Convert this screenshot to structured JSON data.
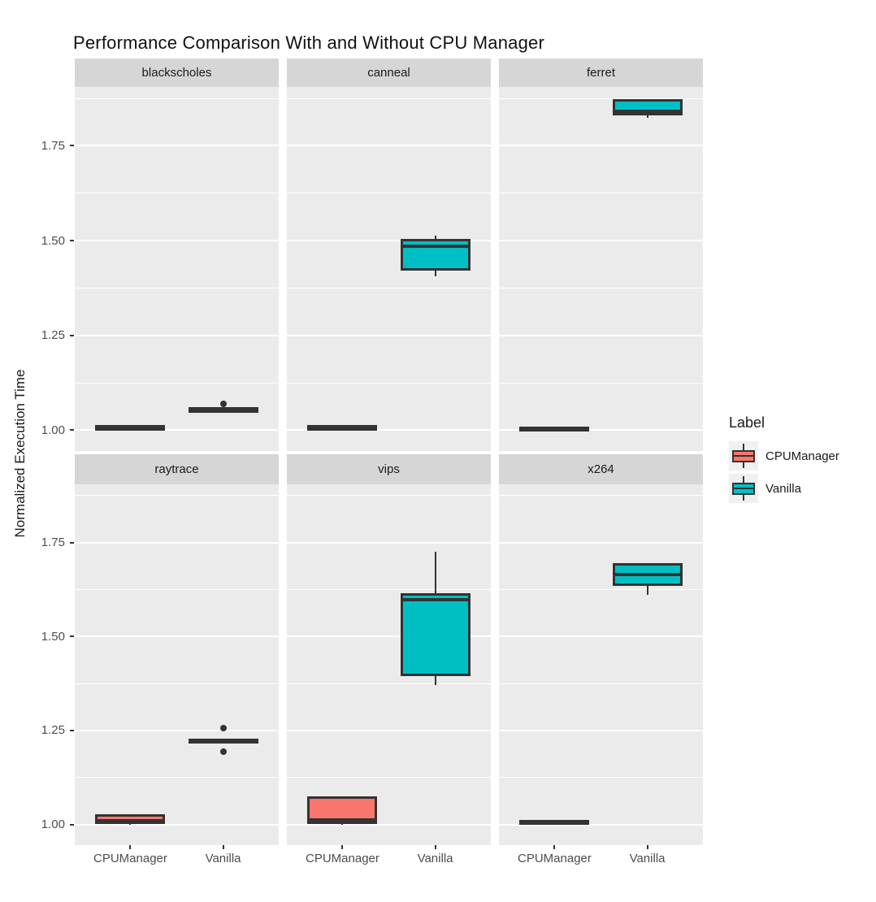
{
  "chart_data": {
    "type": "boxplot",
    "title": "Performance Comparison With and Without CPU Manager",
    "xlabel": "",
    "ylabel": "Normalized Execution Time",
    "categories": [
      "CPUManager",
      "Vanilla"
    ],
    "y_ticks": [
      1.0,
      1.25,
      1.5,
      1.75
    ],
    "y_tick_labels": [
      "1.00",
      "1.25",
      "1.50",
      "1.75"
    ],
    "y_minor": [
      1.125,
      1.375,
      1.625,
      1.875
    ],
    "ylim": [
      0.945,
      1.905
    ],
    "grid": true,
    "legend": {
      "title": "Label",
      "position": "right",
      "entries": [
        {
          "label": "CPUManager",
          "color": "#F8766D"
        },
        {
          "label": "Vanilla",
          "color": "#00BFC4"
        }
      ]
    },
    "facets": [
      {
        "label": "blackscholes",
        "boxes": [
          {
            "group": "CPUManager",
            "min": 1.002,
            "q1": 1.003,
            "median": 1.006,
            "q3": 1.009,
            "max": 1.01,
            "outliers": []
          },
          {
            "group": "Vanilla",
            "min": 1.048,
            "q1": 1.05,
            "median": 1.053,
            "q3": 1.056,
            "max": 1.058,
            "outliers": [
              1.07
            ]
          }
        ]
      },
      {
        "label": "canneal",
        "boxes": [
          {
            "group": "CPUManager",
            "min": 1.0,
            "q1": 1.002,
            "median": 1.006,
            "q3": 1.01,
            "max": 1.012,
            "outliers": []
          },
          {
            "group": "Vanilla",
            "min": 1.405,
            "q1": 1.425,
            "median": 1.485,
            "q3": 1.5,
            "max": 1.512,
            "outliers": []
          }
        ]
      },
      {
        "label": "ferret",
        "boxes": [
          {
            "group": "CPUManager",
            "min": 0.998,
            "q1": 1.0,
            "median": 1.002,
            "q3": 1.005,
            "max": 1.006,
            "outliers": []
          },
          {
            "group": "Vanilla",
            "min": 1.824,
            "q1": 1.834,
            "median": 1.84,
            "q3": 1.868,
            "max": 1.871,
            "outliers": []
          }
        ]
      },
      {
        "label": "raytrace",
        "boxes": [
          {
            "group": "CPUManager",
            "min": 1.0,
            "q1": 1.005,
            "median": 1.01,
            "q3": 1.022,
            "max": 1.026,
            "outliers": []
          },
          {
            "group": "Vanilla",
            "min": 1.218,
            "q1": 1.219,
            "median": 1.221,
            "q3": 1.224,
            "max": 1.226,
            "outliers": [
              1.256,
              1.194
            ]
          }
        ]
      },
      {
        "label": "vips",
        "boxes": [
          {
            "group": "CPUManager",
            "min": 1.0,
            "q1": 1.005,
            "median": 1.012,
            "q3": 1.07,
            "max": 1.073,
            "outliers": []
          },
          {
            "group": "Vanilla",
            "min": 1.372,
            "q1": 1.398,
            "median": 1.598,
            "q3": 1.61,
            "max": 1.725,
            "outliers": []
          }
        ]
      },
      {
        "label": "x264",
        "boxes": [
          {
            "group": "CPUManager",
            "min": 1.002,
            "q1": 1.003,
            "median": 1.006,
            "q3": 1.008,
            "max": 1.009,
            "outliers": []
          },
          {
            "group": "Vanilla",
            "min": 1.61,
            "q1": 1.638,
            "median": 1.665,
            "q3": 1.692,
            "max": 1.692,
            "outliers": []
          }
        ]
      }
    ],
    "colors": {
      "box_border": "#333333",
      "panel_bg": "#EBEBEB",
      "strip_bg": "#D6D6D6",
      "grid": "#FFFFFF",
      "axis_text": "#4D4D4D",
      "text": "#1A1A1A",
      "legend_key_bg": "#F0F0F0"
    }
  }
}
